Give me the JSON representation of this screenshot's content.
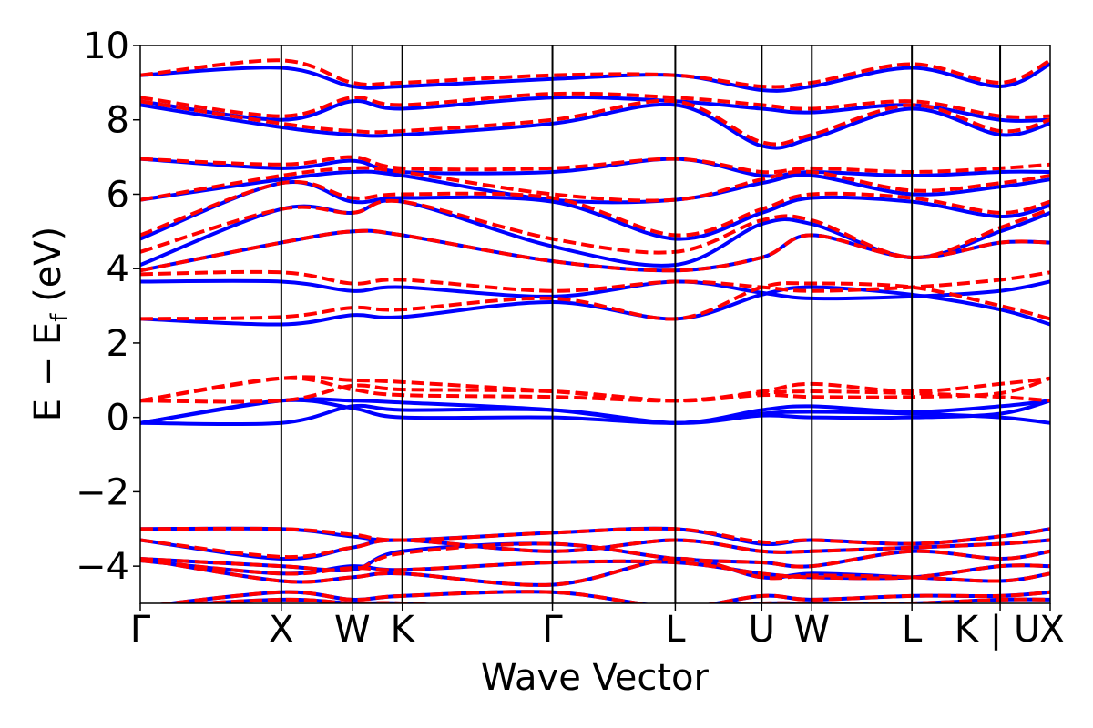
{
  "chart_data": {
    "type": "line",
    "title": "",
    "xlabel": "Wave Vector",
    "ylabel": {
      "main": "E − E",
      "sub": "f",
      "tail": " (eV)"
    },
    "ylim": [
      -5,
      10
    ],
    "y_ticks": [
      10,
      8,
      6,
      4,
      2,
      0,
      -2,
      -4
    ],
    "y_tick_labels": [
      "10",
      "8",
      "6",
      "4",
      "2",
      "0",
      "−2",
      "−4"
    ],
    "x_ticks": [
      {
        "label": "Γ",
        "x": 0.0
      },
      {
        "label": "X",
        "x": 0.155
      },
      {
        "label": "W",
        "x": 0.233
      },
      {
        "label": "K",
        "x": 0.288
      },
      {
        "label": "Γ",
        "x": 0.453
      },
      {
        "label": "L",
        "x": 0.588
      },
      {
        "label": "U",
        "x": 0.683
      },
      {
        "label": "W",
        "x": 0.738
      },
      {
        "label": "L",
        "x": 0.848
      },
      {
        "label": "K | U",
        "x": 0.945
      },
      {
        "label": "X",
        "x": 1.0
      }
    ],
    "grid": false,
    "legend": "none",
    "colors": {
      "blue": "#0000ff",
      "red": "#ff0000",
      "axis": "#000000"
    },
    "styles": {
      "blue": "solid",
      "red": "dashed"
    },
    "series": [
      {
        "color": "blue",
        "style": "solid",
        "band": "valence",
        "y": [
          -3.0,
          -3.0,
          -3.2,
          -3.3,
          -3.1,
          -3.0,
          -3.4,
          -3.3,
          -3.4,
          -3.2,
          -3.0
        ]
      },
      {
        "color": "blue",
        "style": "solid",
        "band": "valence",
        "y": [
          -3.3,
          -3.8,
          -3.5,
          -3.3,
          -3.6,
          -3.3,
          -3.6,
          -3.6,
          -3.5,
          -3.4,
          -3.3
        ]
      },
      {
        "color": "blue",
        "style": "solid",
        "band": "valence",
        "y": [
          -3.8,
          -4.0,
          -4.1,
          -3.6,
          -3.4,
          -3.8,
          -3.9,
          -4.0,
          -3.6,
          -3.8,
          -3.6
        ]
      },
      {
        "color": "blue",
        "style": "solid",
        "band": "valence",
        "y": [
          -3.85,
          -4.2,
          -4.0,
          -4.1,
          -3.9,
          -3.9,
          -4.2,
          -4.3,
          -4.3,
          -4.0,
          -4.0
        ]
      },
      {
        "color": "blue",
        "style": "solid",
        "band": "valence",
        "y": [
          -3.8,
          -4.4,
          -4.3,
          -4.2,
          -4.5,
          -3.8,
          -4.3,
          -4.2,
          -4.3,
          -4.4,
          -4.2
        ]
      },
      {
        "color": "blue",
        "style": "solid",
        "band": "valence",
        "y": [
          -5.1,
          -4.7,
          -4.9,
          -4.8,
          -4.7,
          -5.1,
          -4.8,
          -4.9,
          -4.8,
          -4.8,
          -4.7
        ]
      },
      {
        "color": "blue",
        "style": "solid",
        "band": "valence",
        "y": [
          -5.1,
          -4.9,
          -5.0,
          -5.0,
          -5.2,
          -5.1,
          -5.0,
          -5.0,
          -5.0,
          -4.9,
          -4.9
        ]
      },
      {
        "color": "blue",
        "style": "solid",
        "band": "gap",
        "y": [
          -0.15,
          0.45,
          0.45,
          0.4,
          0.2,
          -0.15,
          0.2,
          0.3,
          0.15,
          0.3,
          0.45
        ]
      },
      {
        "color": "blue",
        "style": "solid",
        "band": "gap",
        "y": [
          -0.15,
          -0.15,
          0.3,
          0.2,
          0.2,
          -0.15,
          0.05,
          0.0,
          0.0,
          0.1,
          0.45
        ]
      },
      {
        "color": "blue",
        "style": "solid",
        "band": "gap",
        "y": [
          -0.15,
          0.45,
          0.25,
          0.0,
          0.0,
          -0.15,
          0.1,
          0.15,
          0.1,
          0.0,
          -0.15
        ]
      },
      {
        "color": "blue",
        "style": "solid",
        "band": "conduction",
        "y": [
          2.65,
          2.5,
          2.75,
          2.7,
          3.1,
          2.65,
          3.3,
          3.5,
          3.3,
          2.9,
          2.5
        ]
      },
      {
        "color": "blue",
        "style": "solid",
        "band": "conduction",
        "y": [
          3.65,
          3.65,
          3.4,
          3.5,
          3.25,
          3.65,
          3.35,
          3.2,
          3.25,
          3.4,
          3.65
        ]
      },
      {
        "color": "blue",
        "style": "solid",
        "band": "conduction",
        "y": [
          3.95,
          4.7,
          5.0,
          4.9,
          4.2,
          3.95,
          4.3,
          4.9,
          4.3,
          4.7,
          4.7
        ]
      },
      {
        "color": "blue",
        "style": "solid",
        "band": "conduction",
        "y": [
          4.1,
          5.6,
          5.5,
          5.8,
          4.6,
          4.1,
          5.2,
          5.2,
          4.3,
          5.0,
          5.5
        ]
      },
      {
        "color": "blue",
        "style": "solid",
        "band": "conduction",
        "y": [
          4.8,
          6.3,
          5.8,
          5.9,
          5.8,
          4.8,
          5.5,
          5.9,
          5.8,
          5.4,
          5.7
        ]
      },
      {
        "color": "blue",
        "style": "solid",
        "band": "conduction",
        "y": [
          5.85,
          6.4,
          6.6,
          6.5,
          5.85,
          5.85,
          6.3,
          6.5,
          6.0,
          6.2,
          6.4
        ]
      },
      {
        "color": "blue",
        "style": "solid",
        "band": "conduction",
        "y": [
          6.95,
          6.7,
          6.9,
          6.6,
          6.6,
          6.95,
          6.5,
          6.6,
          6.5,
          6.6,
          6.6
        ]
      },
      {
        "color": "blue",
        "style": "solid",
        "band": "conduction",
        "y": [
          8.4,
          7.8,
          7.6,
          7.6,
          7.9,
          8.4,
          7.3,
          7.5,
          8.3,
          7.6,
          7.9
        ]
      },
      {
        "color": "blue",
        "style": "solid",
        "band": "conduction",
        "y": [
          8.5,
          8.0,
          8.5,
          8.3,
          8.6,
          8.5,
          8.3,
          8.2,
          8.4,
          8.0,
          8.0
        ]
      },
      {
        "color": "blue",
        "style": "solid",
        "band": "conduction",
        "y": [
          9.2,
          9.4,
          8.9,
          8.9,
          9.1,
          9.2,
          8.8,
          8.9,
          9.4,
          8.9,
          9.5
        ]
      },
      {
        "color": "red",
        "style": "dashed",
        "band": "valence",
        "y": [
          -3.0,
          -3.0,
          -3.15,
          -3.3,
          -3.1,
          -3.0,
          -3.35,
          -3.3,
          -3.4,
          -3.2,
          -3.0
        ]
      },
      {
        "color": "red",
        "style": "dashed",
        "band": "valence",
        "y": [
          -3.3,
          -3.75,
          -3.5,
          -3.3,
          -3.6,
          -3.3,
          -3.6,
          -3.6,
          -3.5,
          -3.4,
          -3.3
        ]
      },
      {
        "color": "red",
        "style": "dashed",
        "band": "valence",
        "y": [
          -3.8,
          -4.0,
          -4.1,
          -3.65,
          -3.4,
          -3.8,
          -3.9,
          -4.0,
          -3.6,
          -3.8,
          -3.6
        ]
      },
      {
        "color": "red",
        "style": "dashed",
        "band": "valence",
        "y": [
          -3.85,
          -4.2,
          -4.05,
          -4.1,
          -3.9,
          -3.9,
          -4.2,
          -4.3,
          -4.3,
          -4.0,
          -4.0
        ]
      },
      {
        "color": "red",
        "style": "dashed",
        "band": "valence",
        "y": [
          -3.8,
          -4.4,
          -4.3,
          -4.2,
          -4.5,
          -3.8,
          -4.3,
          -4.25,
          -4.3,
          -4.4,
          -4.2
        ]
      },
      {
        "color": "red",
        "style": "dashed",
        "band": "valence",
        "y": [
          -5.1,
          -4.7,
          -4.9,
          -4.8,
          -4.7,
          -5.1,
          -4.8,
          -4.9,
          -4.8,
          -4.8,
          -4.7
        ]
      },
      {
        "color": "red",
        "style": "dashed",
        "band": "valence",
        "y": [
          -5.1,
          -4.9,
          -5.0,
          -5.0,
          -5.2,
          -5.1,
          -5.0,
          -5.0,
          -5.0,
          -4.9,
          -4.9
        ]
      },
      {
        "color": "red",
        "style": "dashed",
        "band": "gap",
        "y": [
          0.45,
          1.05,
          1.0,
          0.95,
          0.7,
          0.45,
          0.7,
          0.9,
          0.7,
          0.9,
          1.05
        ]
      },
      {
        "color": "red",
        "style": "dashed",
        "band": "gap",
        "y": [
          0.45,
          0.45,
          0.85,
          0.75,
          0.7,
          0.45,
          0.6,
          0.55,
          0.55,
          0.65,
          1.05
        ]
      },
      {
        "color": "red",
        "style": "dashed",
        "band": "gap",
        "y": [
          0.45,
          1.05,
          0.75,
          0.6,
          0.55,
          0.45,
          0.65,
          0.7,
          0.65,
          0.55,
          0.45
        ]
      },
      {
        "color": "red",
        "style": "dashed",
        "band": "conduction",
        "y": [
          2.65,
          2.7,
          2.95,
          2.9,
          3.2,
          2.65,
          3.5,
          3.6,
          3.5,
          3.0,
          2.65
        ]
      },
      {
        "color": "red",
        "style": "dashed",
        "band": "conduction",
        "y": [
          3.85,
          3.9,
          3.6,
          3.7,
          3.4,
          3.65,
          3.5,
          3.4,
          3.5,
          3.7,
          3.9
        ]
      },
      {
        "color": "red",
        "style": "dashed",
        "band": "conduction",
        "y": [
          3.95,
          4.7,
          5.0,
          4.9,
          4.2,
          3.95,
          4.3,
          4.9,
          4.3,
          4.7,
          4.7
        ]
      },
      {
        "color": "red",
        "style": "dashed",
        "band": "conduction",
        "y": [
          4.45,
          5.6,
          5.5,
          5.8,
          4.8,
          4.45,
          5.3,
          5.3,
          4.3,
          5.1,
          5.6
        ]
      },
      {
        "color": "red",
        "style": "dashed",
        "band": "conduction",
        "y": [
          4.9,
          6.3,
          5.9,
          6.0,
          5.9,
          4.9,
          5.6,
          6.0,
          5.9,
          5.5,
          5.8
        ]
      },
      {
        "color": "red",
        "style": "dashed",
        "band": "conduction",
        "y": [
          5.85,
          6.5,
          6.7,
          6.6,
          6.0,
          5.85,
          6.4,
          6.6,
          6.1,
          6.3,
          6.5
        ]
      },
      {
        "color": "red",
        "style": "dashed",
        "band": "conduction",
        "y": [
          6.95,
          6.8,
          7.0,
          6.7,
          6.7,
          6.95,
          6.6,
          6.7,
          6.6,
          6.7,
          6.8
        ]
      },
      {
        "color": "red",
        "style": "dashed",
        "band": "conduction",
        "y": [
          8.5,
          7.9,
          7.7,
          7.7,
          8.0,
          8.5,
          7.4,
          7.6,
          8.4,
          7.7,
          8.0
        ]
      },
      {
        "color": "red",
        "style": "dashed",
        "band": "conduction",
        "y": [
          8.6,
          8.1,
          8.6,
          8.4,
          8.7,
          8.6,
          8.4,
          8.3,
          8.5,
          8.1,
          8.1
        ]
      },
      {
        "color": "red",
        "style": "dashed",
        "band": "conduction",
        "y": [
          9.2,
          9.6,
          9.0,
          9.0,
          9.2,
          9.2,
          8.9,
          9.0,
          9.5,
          9.0,
          9.6
        ]
      }
    ]
  }
}
